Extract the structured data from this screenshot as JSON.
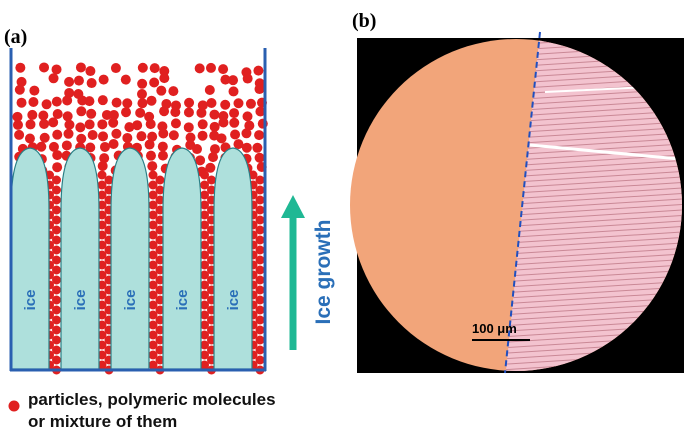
{
  "panel_a": {
    "label": "(a)",
    "ice_labels": [
      "ice",
      "ice",
      "ice",
      "ice",
      "ice"
    ],
    "arrow_label": "Ice growth",
    "legend": [
      "particles, polymeric molecules",
      "or mixture of them"
    ]
  },
  "panel_b": {
    "label": "(b)",
    "scale_bar": "100 μm"
  }
}
